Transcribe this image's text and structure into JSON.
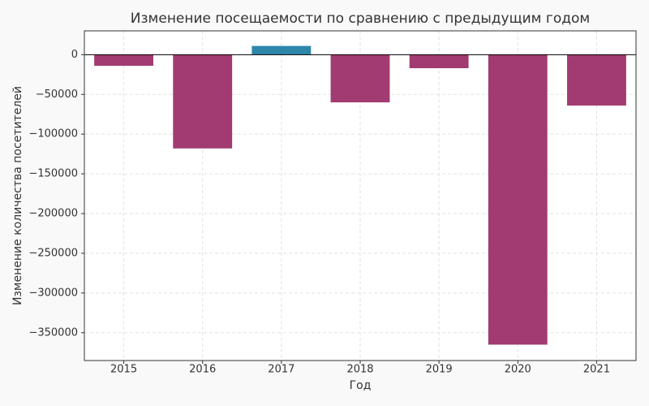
{
  "chart_data": {
    "type": "bar",
    "title": "Изменение посещаемости по сравнению с предыдущим годом",
    "x_label": "Год",
    "y_label": "Изменение количества посетителей",
    "categories": [
      "2015",
      "2016",
      "2017",
      "2018",
      "2019",
      "2020",
      "2021"
    ],
    "values": [
      -14000,
      -118000,
      11000,
      -60000,
      -17000,
      -365000,
      -64000
    ],
    "colors": [
      "#a23b72",
      "#a23b72",
      "#2e86ab",
      "#a23b72",
      "#a23b72",
      "#a23b72",
      "#a23b72"
    ],
    "ylim": [
      -385000,
      30000
    ],
    "yticks": [
      {
        "value": -350000,
        "label": "−350000"
      },
      {
        "value": -300000,
        "label": "−300000"
      },
      {
        "value": -250000,
        "label": "−250000"
      },
      {
        "value": -200000,
        "label": "−200000"
      },
      {
        "value": -150000,
        "label": "−150000"
      },
      {
        "value": -100000,
        "label": "−100000"
      },
      {
        "value": -50000,
        "label": "−50000"
      },
      0
    ],
    "grid": true
  }
}
